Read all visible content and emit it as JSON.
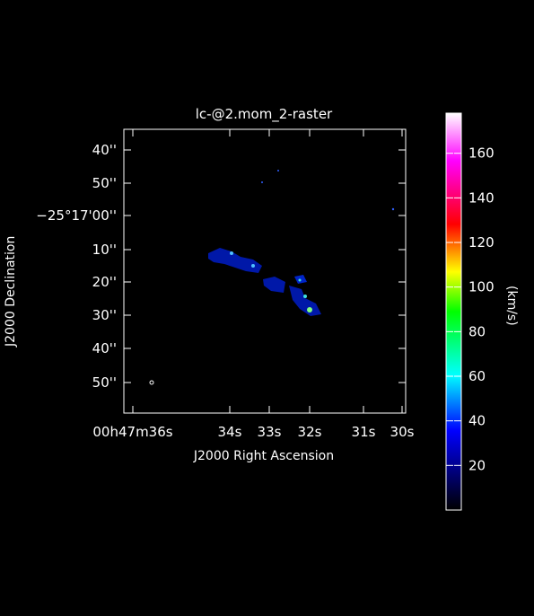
{
  "figure": {
    "title": "lc-@2.mom_2-raster",
    "xlabel": "J2000 Right Ascension",
    "ylabel": "J2000 Declination",
    "xticks": [
      "00h47m36s",
      "34s",
      "33s",
      "32s",
      "31s",
      "30s"
    ],
    "yticks": [
      "40''",
      "50''",
      "−25°17'00''",
      "10''",
      "20''",
      "30''",
      "40''",
      "50''"
    ],
    "colorbar": {
      "unit": "(km/s)",
      "ticks": [
        "20",
        "40",
        "60",
        "80",
        "100",
        "120",
        "140",
        "160"
      ],
      "colors": [
        "#000000",
        "#0000ff",
        "#00ffff",
        "#00ff00",
        "#ffff00",
        "#ff0000",
        "#ff00ff",
        "#ffffff"
      ]
    }
  },
  "labels": {
    "x_hms_hour": "00",
    "x_hms_min": "47",
    "x_hms_sec": "36",
    "x_h_sup": "h",
    "x_m_sup": "m",
    "x_s_sup": "s"
  }
}
